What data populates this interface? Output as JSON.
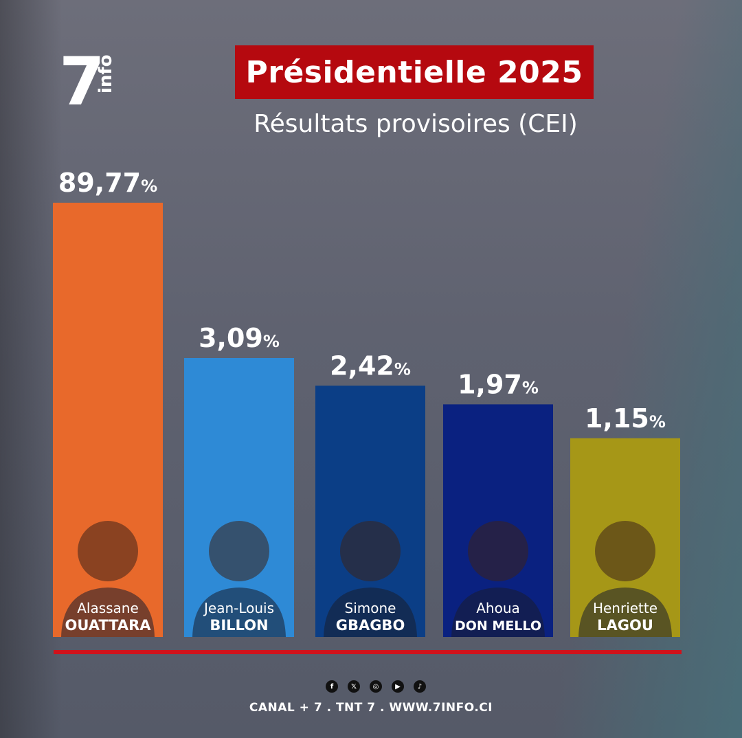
{
  "logo": {
    "numeral": "7",
    "word": "info"
  },
  "header": {
    "title": "Présidentielle 2025",
    "subtitle": "Résultats provisoires (CEI)"
  },
  "chart_data": {
    "type": "bar",
    "title": "Présidentielle 2025",
    "subtitle": "Résultats provisoires (CEI)",
    "unit": "%",
    "categories": [
      "Alassane OUATTARA",
      "Jean-Louis BILLON",
      "Simone GBAGBO",
      "Ahoua DON MELLO",
      "Henriette LAGOU"
    ],
    "candidates": [
      {
        "first": "Alassane",
        "last": "OUATTARA",
        "value_label": "89,77",
        "color": "#e8692b"
      },
      {
        "first": "Jean-Louis",
        "last": "BILLON",
        "value_label": "3,09",
        "color": "#2e8ad6"
      },
      {
        "first": "Simone",
        "last": "GBAGBO",
        "value_label": "2,42",
        "color": "#0b3e86"
      },
      {
        "first": "Ahoua",
        "last": "DON MELLO",
        "value_label": "1,97",
        "color": "#0a2180"
      },
      {
        "first": "Henriette",
        "last": "LAGOU",
        "value_label": "1,15",
        "color": "#a69717"
      }
    ],
    "values": [
      89.77,
      3.09,
      2.42,
      1.97,
      1.15
    ],
    "percent_sign": "%",
    "baseline_color": "#d0121b"
  },
  "social_icons": [
    "facebook-icon",
    "x-icon",
    "instagram-icon",
    "youtube-icon",
    "tiktok-icon"
  ],
  "social_glyphs": [
    "f",
    "𝕏",
    "◎",
    "▶",
    "♪"
  ],
  "footer": {
    "text": "CANAL + 7 . TNT  7 . WWW.7INFO.CI"
  }
}
